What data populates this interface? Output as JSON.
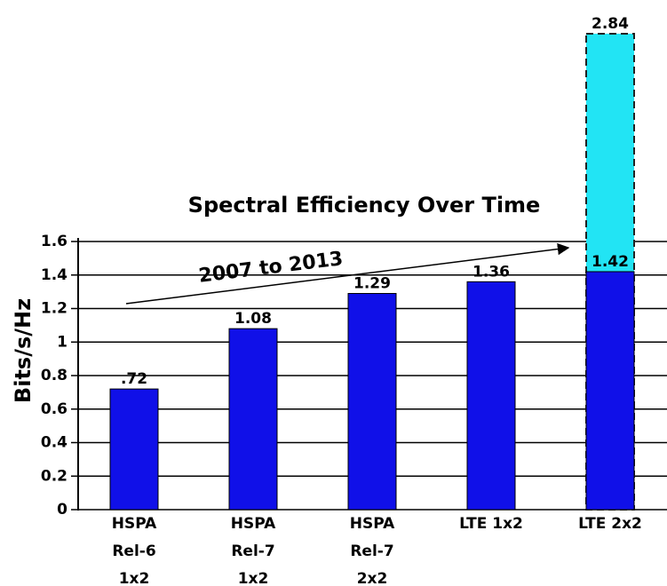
{
  "chart_data": {
    "type": "bar",
    "title": "Spectral Efficiency Over Time",
    "annotation": "2007 to 2013",
    "y_label": "Bits/s/Hz",
    "categories": [
      [
        "HSPA",
        "Rel-6",
        "1x2"
      ],
      [
        "HSPA",
        "Rel-7",
        "1x2"
      ],
      [
        "HSPA",
        "Rel-7",
        "2x2"
      ],
      [
        "LTE 1x2"
      ],
      [
        "LTE 2x2"
      ]
    ],
    "series": [
      {
        "color": "#1010e8",
        "values": [
          0.72,
          1.08,
          1.29,
          1.36,
          1.42
        ],
        "value_labels": [
          ".72",
          "1.08",
          "1.29",
          "1.36",
          "1.42"
        ]
      },
      {
        "color": "#22e4f4",
        "values": [
          null,
          null,
          null,
          null,
          2.84
        ],
        "value_labels": [
          null,
          null,
          null,
          null,
          "2.84"
        ],
        "dashed": true
      }
    ],
    "ylim": [
      0,
      1.6
    ],
    "yticks": [
      0,
      0.2,
      0.4,
      0.6,
      0.8,
      1,
      1.2,
      1.4,
      1.6
    ],
    "grid": true
  }
}
